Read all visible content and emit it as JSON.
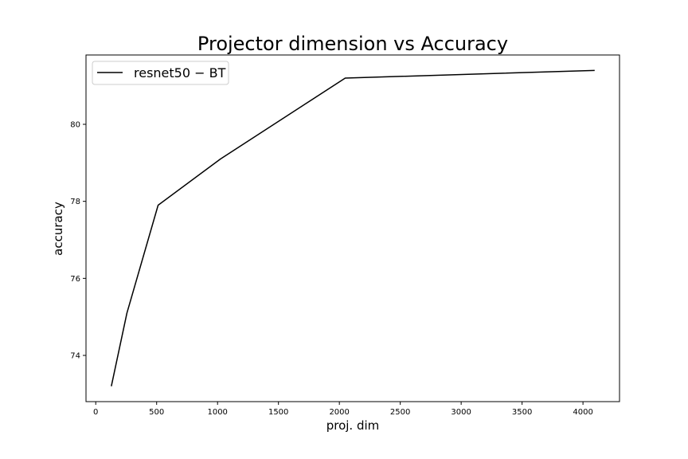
{
  "chart_data": {
    "type": "line",
    "title": "Projector dimension vs Accuracy",
    "xlabel": "proj. dim",
    "ylabel": "accuracy",
    "xlim": [
      -80,
      4300
    ],
    "ylim": [
      72.8,
      81.8
    ],
    "xticks": [
      0,
      500,
      1000,
      1500,
      2000,
      2500,
      3000,
      3500,
      4000
    ],
    "yticks": [
      74,
      76,
      78,
      80
    ],
    "grid": false,
    "legend_position": "top-left",
    "series": [
      {
        "name": "resnet50 − BT",
        "color": "#000000",
        "x": [
          128,
          256,
          512,
          1024,
          2048,
          4096
        ],
        "y": [
          73.2,
          75.1,
          77.9,
          79.1,
          81.2,
          81.4
        ]
      }
    ]
  }
}
